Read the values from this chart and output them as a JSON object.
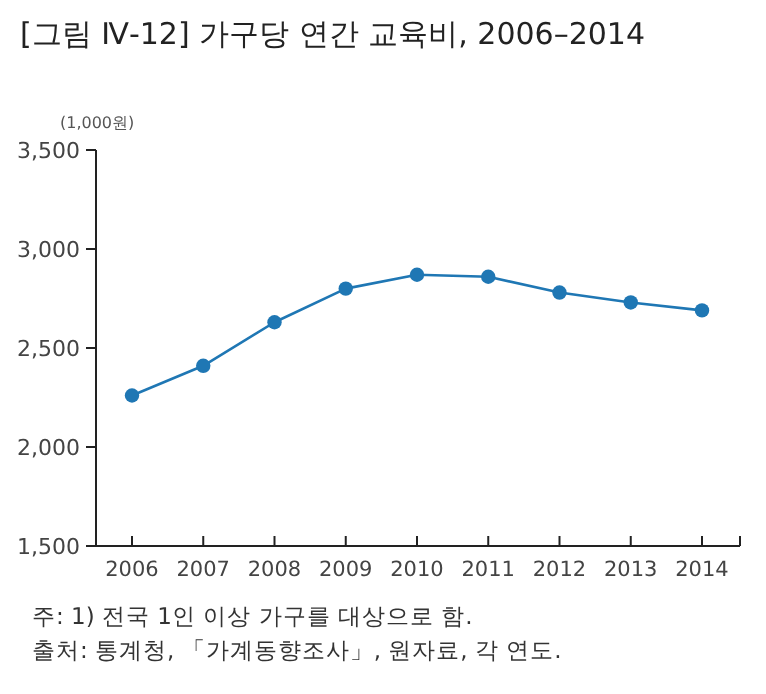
{
  "chart_data": {
    "type": "line",
    "title": "[그림 Ⅳ-12] 가구당 연간 교육비, 2006–2014",
    "ylabel": "(1,000원)",
    "categories": [
      "2006",
      "2007",
      "2008",
      "2009",
      "2010",
      "2011",
      "2012",
      "2013",
      "2014"
    ],
    "series": [
      {
        "color": "#1f77b4",
        "values": [
          2260,
          2410,
          2630,
          2800,
          2870,
          2860,
          2780,
          2730,
          2690
        ]
      }
    ],
    "ylim": [
      1500,
      3500
    ],
    "yticks": [
      {
        "value": 1500,
        "label": "1,500"
      },
      {
        "value": 2000,
        "label": "2,000"
      },
      {
        "value": 2500,
        "label": "2,500"
      },
      {
        "value": 3000,
        "label": "3,000"
      },
      {
        "value": 3500,
        "label": "3,500"
      }
    ],
    "marker": "circle",
    "line_style": "solid",
    "annotations": [
      "주: 1) 전국 1인 이상 가구를 대상으로 함.",
      "출처: 통계청, 「가계동향조사」, 원자료, 각 연도."
    ]
  }
}
